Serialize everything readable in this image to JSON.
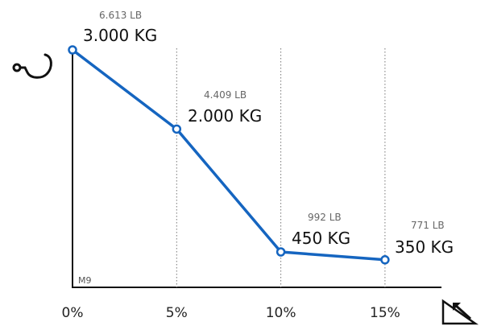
{
  "chart_data": {
    "type": "line",
    "model": "M9",
    "x_unit": "%",
    "x": [
      0,
      5,
      10,
      15
    ],
    "categories": [
      "0%",
      "5%",
      "10%",
      "15%"
    ],
    "series": [
      {
        "values": [
          3000,
          2000,
          450,
          350
        ],
        "color": "#1565c0"
      }
    ],
    "labels_kg": [
      "3.000 KG",
      "2.000 KG",
      "450 KG",
      "350 KG"
    ],
    "labels_lb": [
      "6.613 LB",
      "4.409 LB",
      "992 LB",
      "771 LB"
    ],
    "ylim": [
      0,
      3000
    ],
    "grid": "vertical-dotted",
    "icons": {
      "y_axis": "hook-icon",
      "x_axis": "slope-angle-icon"
    }
  }
}
